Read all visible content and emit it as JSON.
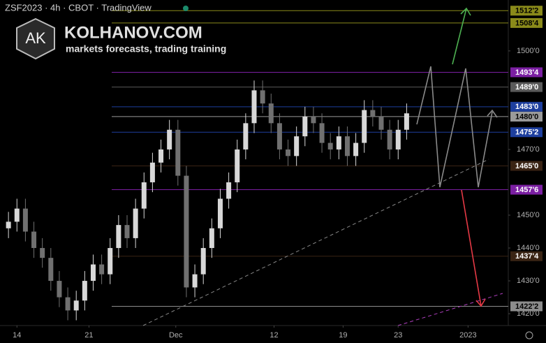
{
  "chart_data": {
    "type": "candlestick",
    "symbol": "ZSF2023 · 4h · CBOT · TradingView",
    "brand": "KOLHANOV.COM",
    "tagline": "markets forecasts, trading training",
    "logo": "AK",
    "x": [
      2,
      4,
      6,
      8,
      10,
      12,
      14,
      16,
      18,
      20,
      22,
      24,
      26,
      28,
      30,
      32,
      34,
      36,
      38,
      40,
      42,
      44,
      46,
      48,
      50,
      52,
      54,
      56,
      58,
      60,
      62,
      64,
      66,
      68,
      70,
      72,
      74,
      76,
      78,
      80,
      82,
      84,
      86,
      88,
      90,
      92,
      94,
      96
    ],
    "open": [
      1446,
      1448,
      1452,
      1445,
      1440,
      1437,
      1430,
      1425,
      1421,
      1424,
      1430,
      1435,
      1432,
      1440,
      1447,
      1443,
      1452,
      1460,
      1466,
      1470,
      1476,
      1462,
      1428,
      1432,
      1440,
      1446,
      1455,
      1460,
      1470,
      1478,
      1488,
      1484,
      1478,
      1470,
      1468,
      1474,
      1480,
      1478,
      1472,
      1470,
      1474,
      1468,
      1472,
      1482,
      1480,
      1476,
      1470,
      1476
    ],
    "high": [
      1451,
      1455,
      1455,
      1448,
      1443,
      1440,
      1433,
      1428,
      1427,
      1433,
      1438,
      1438,
      1443,
      1450,
      1450,
      1455,
      1463,
      1469,
      1473,
      1479,
      1479,
      1465,
      1435,
      1443,
      1449,
      1458,
      1463,
      1473,
      1481,
      1491,
      1491,
      1487,
      1481,
      1473,
      1477,
      1483,
      1483,
      1481,
      1475,
      1477,
      1477,
      1475,
      1485,
      1485,
      1483,
      1479,
      1479,
      1484
    ],
    "low": [
      1443,
      1445,
      1442,
      1437,
      1434,
      1427,
      1422,
      1418,
      1418,
      1421,
      1427,
      1429,
      1429,
      1437,
      1440,
      1440,
      1449,
      1457,
      1463,
      1467,
      1459,
      1425,
      1425,
      1429,
      1437,
      1443,
      1452,
      1457,
      1467,
      1475,
      1481,
      1475,
      1467,
      1465,
      1465,
      1471,
      1475,
      1469,
      1467,
      1467,
      1465,
      1465,
      1469,
      1477,
      1473,
      1467,
      1467,
      1473
    ],
    "close": [
      1448,
      1452,
      1445,
      1440,
      1437,
      1430,
      1425,
      1421,
      1424,
      1430,
      1435,
      1432,
      1440,
      1447,
      1443,
      1452,
      1460,
      1466,
      1470,
      1476,
      1462,
      1428,
      1432,
      1440,
      1446,
      1455,
      1460,
      1470,
      1478,
      1488,
      1484,
      1478,
      1470,
      1468,
      1474,
      1480,
      1478,
      1472,
      1470,
      1474,
      1468,
      1472,
      1482,
      1480,
      1476,
      1470,
      1476,
      1481
    ],
    "up_color": "#d8d8d8",
    "down_color": "#707070",
    "xlim": [
      0,
      120
    ],
    "xticks": [
      {
        "value": 4,
        "label": "14"
      },
      {
        "value": 21,
        "label": "21"
      },
      {
        "value": 41.5,
        "label": "Dec"
      },
      {
        "value": 64.7,
        "label": "12"
      },
      {
        "value": 81,
        "label": "19"
      },
      {
        "value": 94,
        "label": "23"
      },
      {
        "value": 110.5,
        "label": "2023"
      }
    ],
    "ylim": [
      1416.4,
      1515.5
    ],
    "yticks": [
      {
        "value": 1500,
        "label": "1500'0"
      },
      {
        "value": 1470,
        "label": "1470'0"
      },
      {
        "value": 1450,
        "label": "1450'0"
      },
      {
        "value": 1440,
        "label": "1440'0"
      },
      {
        "value": 1430,
        "label": "1430'0"
      },
      {
        "value": 1420,
        "label": "1420'0"
      }
    ],
    "levels": [
      {
        "value": 1512.25,
        "label": "1512'2",
        "color": "#8a8a1a"
      },
      {
        "value": 1508.5,
        "label": "1508'4",
        "color": "#8a8a1a"
      },
      {
        "value": 1493.5,
        "label": "1493'4",
        "color": "#7b1fa2"
      },
      {
        "value": 1489,
        "label": "1489'0",
        "color": "#5a5a5a"
      },
      {
        "value": 1483,
        "label": "1483'0",
        "color": "#1e3f9e"
      },
      {
        "value": 1480,
        "label": "1480'0",
        "color": "#9a9a9a"
      },
      {
        "value": 1475.25,
        "label": "1475'2",
        "color": "#1e3f9e"
      },
      {
        "value": 1465,
        "label": "1465'0",
        "color": "#3a2414"
      },
      {
        "value": 1457.75,
        "label": "1457'6",
        "color": "#7b1fa2"
      },
      {
        "value": 1437.5,
        "label": "1437'4",
        "color": "#3a2414"
      },
      {
        "value": 1422.25,
        "label": "1422'2",
        "color": "#8c8c8c"
      }
    ]
  }
}
